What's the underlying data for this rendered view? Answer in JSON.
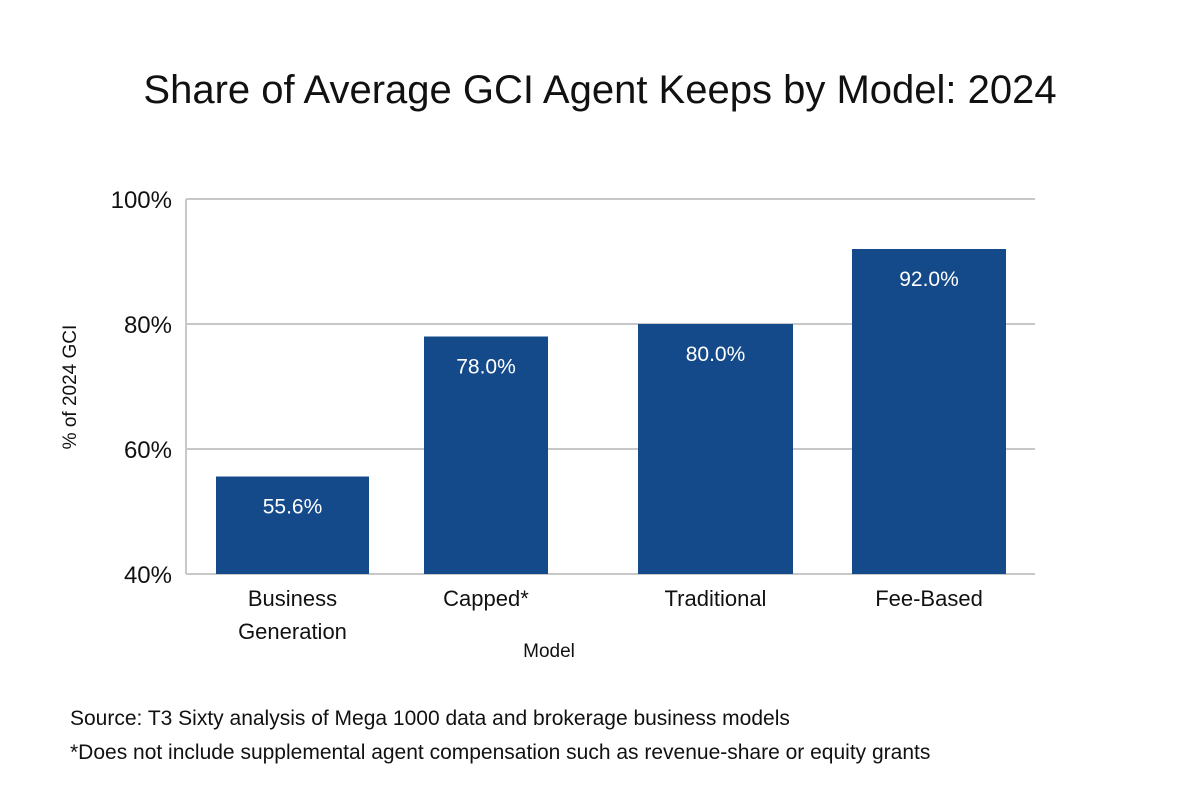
{
  "chart_data": {
    "type": "bar",
    "title": "Share of Average GCI Agent Keeps by Model: 2024",
    "xlabel": "Model",
    "ylabel": "% of 2024 GCI",
    "categories": [
      [
        "Business",
        "Generation"
      ],
      [
        "Capped*"
      ],
      [
        "Traditional"
      ],
      [
        "Fee-Based"
      ]
    ],
    "values": [
      55.6,
      78.0,
      80.0,
      92.0
    ],
    "data_labels": [
      "55.6%",
      "78.0%",
      "80.0%",
      "92.0%"
    ],
    "ylim": [
      40,
      100
    ],
    "yticks": [
      40,
      60,
      80,
      100
    ],
    "ytick_labels": [
      "40%",
      "60%",
      "80%",
      "100%"
    ],
    "grid": true,
    "bar_color": "#154a8a",
    "grid_color": "#c8c8c8"
  },
  "footnotes": {
    "source": "Source: T3 Sixty analysis of Mega 1000 data and brokerage business models",
    "asterisk": "*Does not include supplemental agent compensation such as revenue-share or equity grants"
  }
}
